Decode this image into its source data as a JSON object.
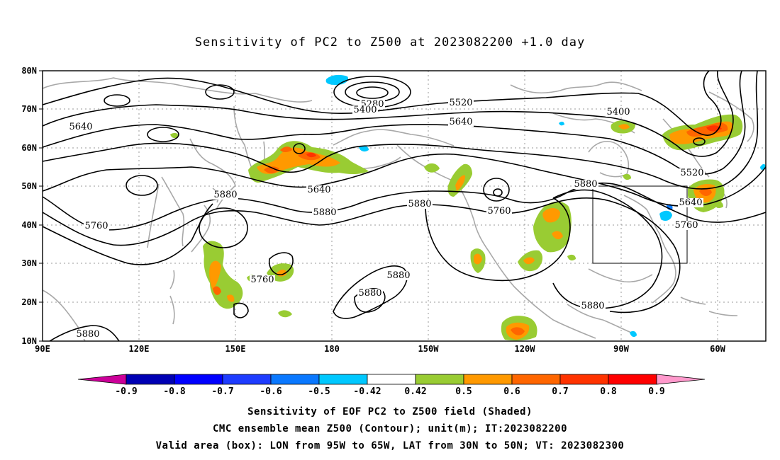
{
  "title": "Sensitivity of PC2 to Z500 at 2023082200 +1.0 day",
  "lat_labels": [
    "80N",
    "70N",
    "60N",
    "50N",
    "40N",
    "30N",
    "20N",
    "10N"
  ],
  "lon_labels": [
    "90E",
    "120E",
    "150E",
    "180",
    "150W",
    "120W",
    "90W",
    "60W"
  ],
  "contour_labels": [
    "5280",
    "5400",
    "5520",
    "5640",
    "5400",
    "5640",
    "5520",
    "5640",
    "5640",
    "5760",
    "5880",
    "5880",
    "5760",
    "5760",
    "5880",
    "5880",
    "5760",
    "5880",
    "5880",
    "5880",
    "5880"
  ],
  "colorbar": {
    "labels": [
      "-0.9",
      "-0.8",
      "-0.7",
      "-0.6",
      "-0.5",
      "-0.42",
      "0.42",
      "0.5",
      "0.6",
      "0.7",
      "0.8",
      "0.9"
    ],
    "colors": [
      "#cc0099",
      "#0000b4",
      "#0000ff",
      "#1e3cff",
      "#0a78ff",
      "#00c8ff",
      "#ffffff",
      "#99cc33",
      "#ff9900",
      "#ff6600",
      "#ff3300",
      "#ff0000",
      "#ff99cc"
    ]
  },
  "footer": {
    "line1": "Sensitivity of EOF PC2 to Z500 field (Shaded)",
    "line2": "CMC ensemble mean Z500 (Contour); unit(m); IT:2023082200",
    "line3": "Valid area (box): LON from 95W to 65W, LAT from 30N to 50N; VT: 2023082300"
  },
  "colors": {
    "contour": "#000000",
    "coast": "#aaaaaa",
    "grid": "#999999"
  }
}
